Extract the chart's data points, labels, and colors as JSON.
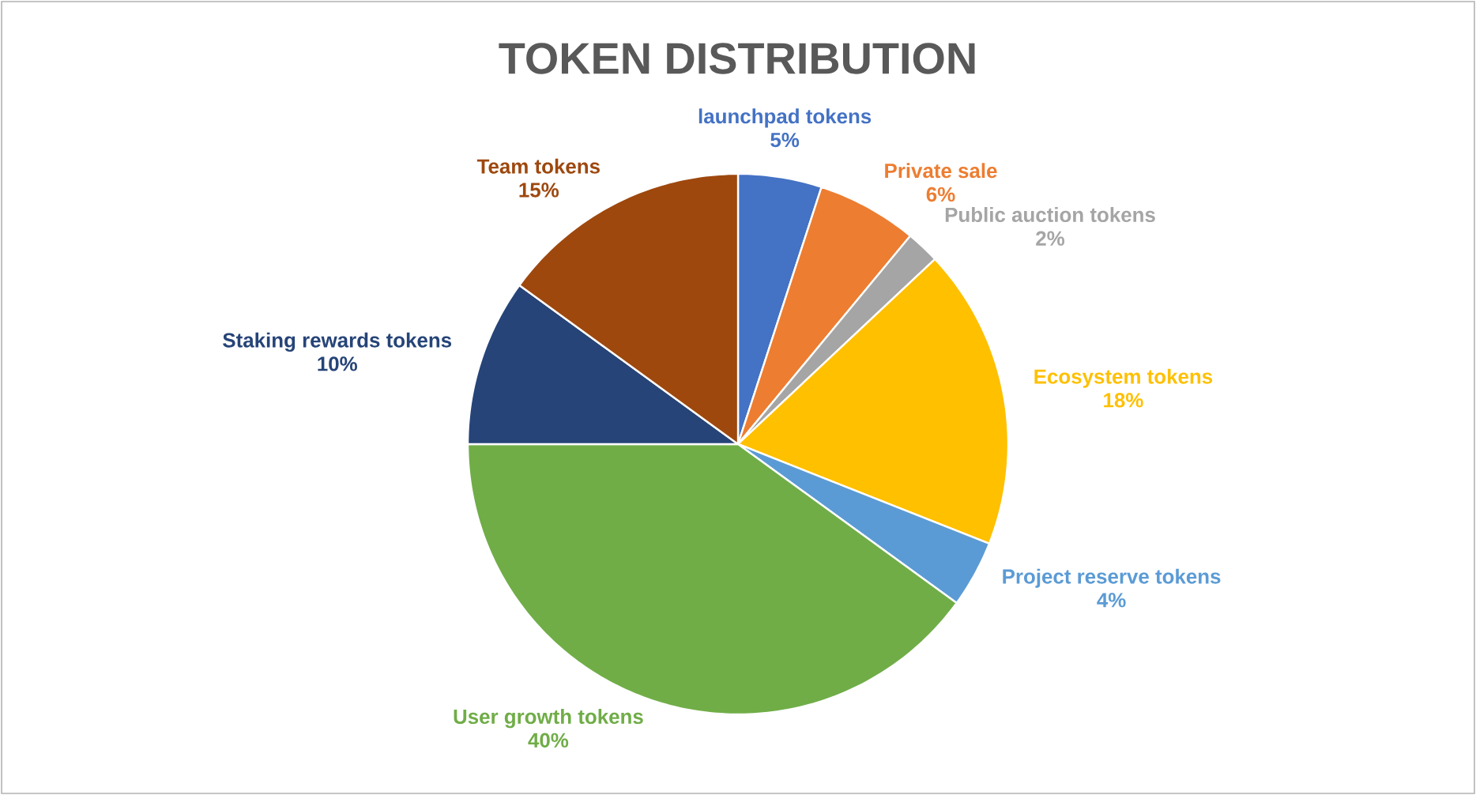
{
  "chart_data": {
    "type": "pie",
    "title": "TOKEN DISTRIBUTION",
    "categories": [
      "launchpad tokens",
      "Private sale",
      "Public auction tokens",
      "Ecosystem tokens",
      "Project reserve tokens",
      "User growth tokens",
      "Staking rewards tokens",
      "Team tokens"
    ],
    "values": [
      5,
      6,
      2,
      18,
      4,
      40,
      10,
      15
    ],
    "value_labels": [
      "5%",
      "6%",
      "2%",
      "18%",
      "4%",
      "40%",
      "10%",
      "15%"
    ],
    "colors": [
      "#4472c4",
      "#ed7d31",
      "#a5a5a5",
      "#ffc000",
      "#5b9bd5",
      "#70ad47",
      "#264478",
      "#9e480e"
    ]
  }
}
